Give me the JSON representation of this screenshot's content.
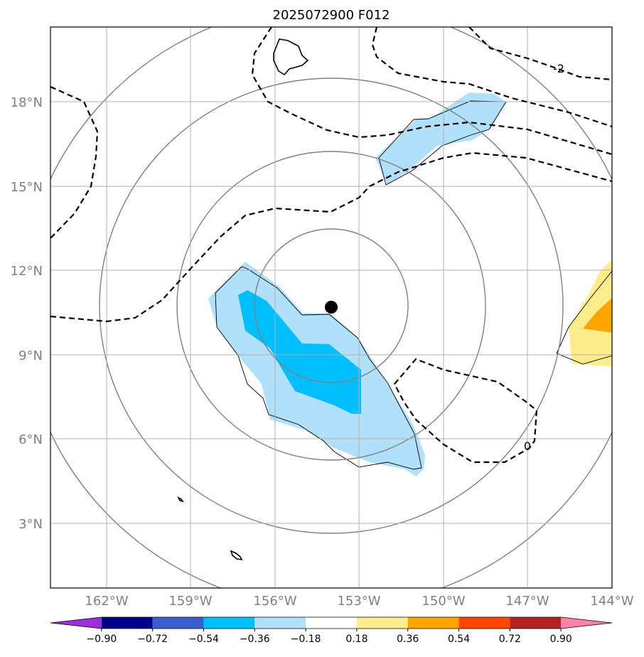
{
  "title": "2025072900 F012",
  "map": {
    "lat_ticks": [
      "18°N",
      "15°N",
      "12°N",
      "9°N",
      "6°N",
      "3°N"
    ],
    "lon_ticks": [
      "162°W",
      "159°W",
      "156°W",
      "153°W",
      "150°W",
      "147°W",
      "144°W"
    ],
    "lon_range": [
      -164,
      -144
    ],
    "lat_range": [
      0.7,
      20.7
    ],
    "grid": true,
    "storm_center": {
      "lon": -154.1,
      "lat": 10.7
    },
    "contour_labels": [
      "-2",
      "0"
    ]
  },
  "colorbar": {
    "ticks": [
      "−0.90",
      "−0.72",
      "−0.54",
      "−0.36",
      "−0.18",
      "0.18",
      "0.36",
      "0.54",
      "0.72",
      "0.90"
    ],
    "colors": [
      "#9b30d9",
      "#00008b",
      "#3a5fcd",
      "#00bfff",
      "#b0e0fa",
      "#ffffff",
      "#ffec8b",
      "#ffa500",
      "#ff4500",
      "#b22222",
      "#ff82ab"
    ],
    "extend": "both"
  }
}
